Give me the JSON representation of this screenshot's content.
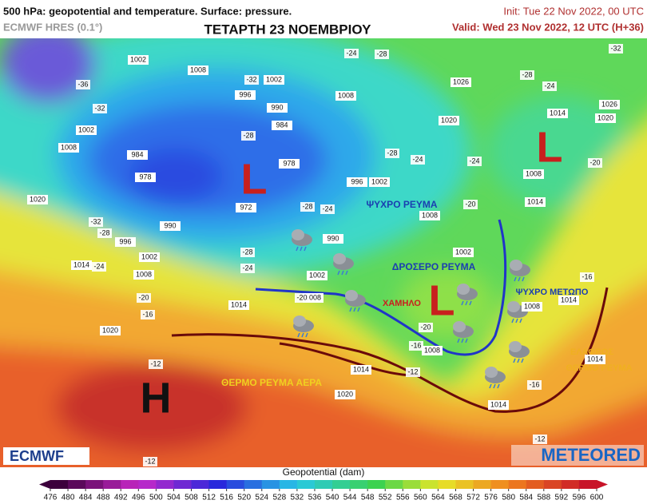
{
  "header": {
    "title": "500 hPa: geopotential and temperature. Surface: pressure.",
    "model": "ECMWF HRES (0.1°)",
    "day": "ΤΕΤΑΡΤΗ 23 ΝΟΕΜΒΡΙΟΥ",
    "init": "Init: Tue 22 Nov 2022, 00 UTC",
    "valid": "Valid: Wed 23 Nov 2022, 12 UTC (H+36)"
  },
  "map": {
    "pressure_centers": [
      "L",
      "L",
      "L",
      "H"
    ],
    "annotations": [
      "ΨΥΧΡΟ ΡΕΥΜΑ",
      "ΔΡΟΣΕΡΟ ΡΕΥΜΑ",
      "ΧΑΜΗΛΟ",
      "ΨΥΧΡΟ ΜΕΤΩΠΟ",
      "ΕΛΑΦΡΩΣ",
      "ΘΕΡΜΟ ΡΕΥΜΑ",
      "ΘΕΡΜΟ ΡΕΥΜΑ ΑΕΡΑ"
    ],
    "isobar_labels": [
      "1002",
      "1008",
      "1002",
      "996",
      "990",
      "984",
      "984",
      "978",
      "978",
      "972",
      "990",
      "990",
      "996",
      "1002",
      "1008",
      "1014",
      "1020",
      "1002",
      "1008",
      "1008",
      "1002",
      "996",
      "1008",
      "1002",
      "1026",
      "1020",
      "1014",
      "1008",
      "1014",
      "1026",
      "1020",
      "1002",
      "1014",
      "1020",
      "1008",
      "1008",
      "1014",
      "1020",
      "1014",
      "1008",
      "1014",
      "1014"
    ],
    "temperature_labels": [
      "-32",
      "-32",
      "-32",
      "-36",
      "-28",
      "-28",
      "-28",
      "-28",
      "-28",
      "-28",
      "-28",
      "-24",
      "-24",
      "-24",
      "-24",
      "-24",
      "-24",
      "-24",
      "-20",
      "-20",
      "-20",
      "-20",
      "-20",
      "-16",
      "-16",
      "-16",
      "-16",
      "-12",
      "-12",
      "-12",
      "-12",
      "-32"
    ]
  },
  "logos": {
    "left": "ECMWF",
    "right": "METEORED"
  },
  "colorbar": {
    "title": "Geopotential (dam)",
    "ticks": [
      476,
      480,
      484,
      488,
      492,
      496,
      500,
      504,
      508,
      512,
      516,
      520,
      524,
      528,
      532,
      536,
      540,
      544,
      548,
      552,
      556,
      560,
      564,
      568,
      572,
      576,
      580,
      584,
      588,
      592,
      596,
      600
    ]
  }
}
